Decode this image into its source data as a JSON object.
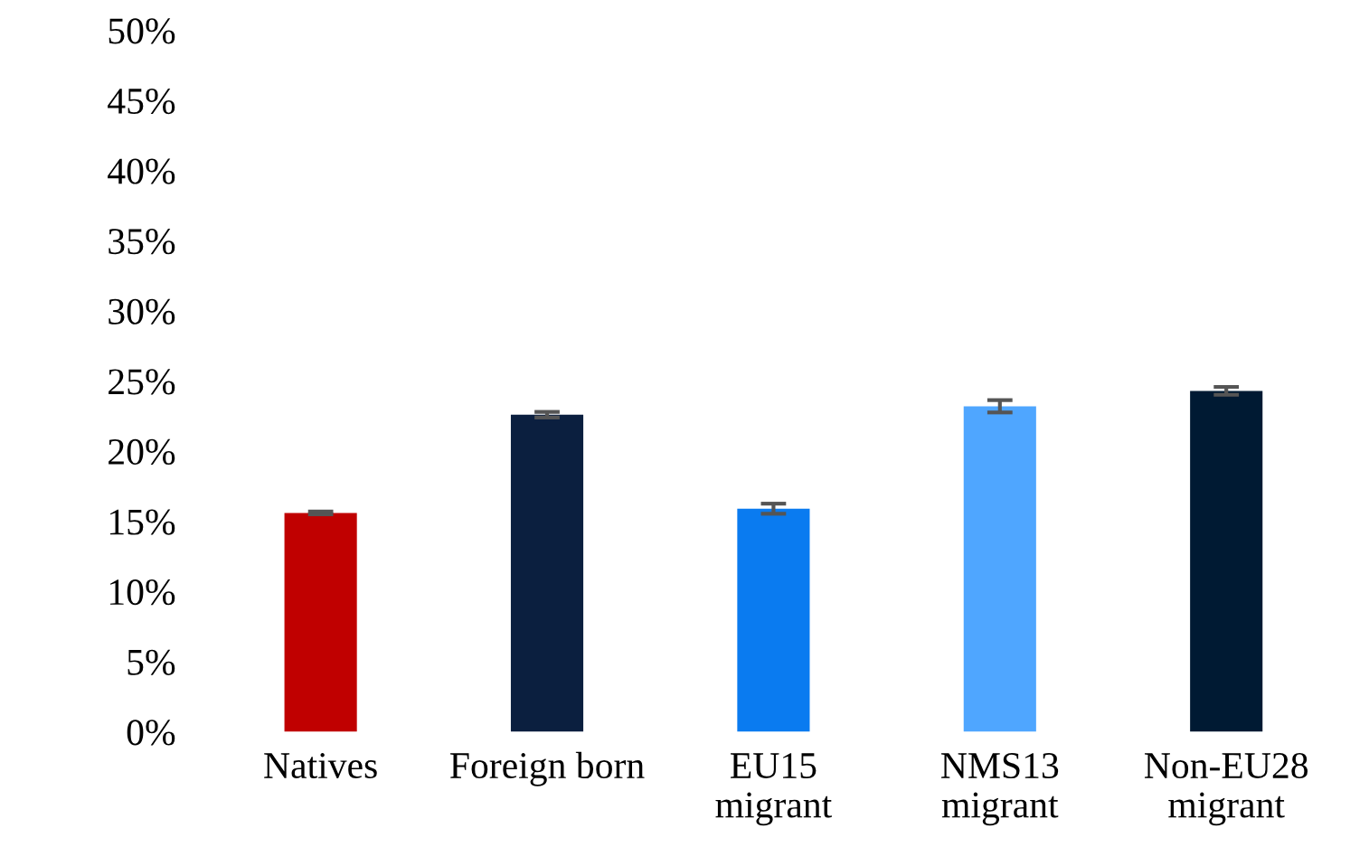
{
  "chart_data": {
    "type": "bar",
    "categories": [
      "Natives",
      "Foreign born",
      "EU15\nmigrant",
      "NMS13\nmigrant",
      "Non-EU28\nmigrant"
    ],
    "values": [
      15.6,
      22.6,
      15.9,
      23.2,
      24.3
    ],
    "errors": [
      0.1,
      0.2,
      0.36,
      0.44,
      0.28
    ],
    "colors": [
      "#c00000",
      "#0b1f3f",
      "#0a7bf0",
      "#4fa6ff",
      "#001a33"
    ],
    "ylim": [
      0,
      50
    ],
    "yticks": [
      {
        "value": 0,
        "label": "0%"
      },
      {
        "value": 5,
        "label": "5%"
      },
      {
        "value": 10,
        "label": "10%"
      },
      {
        "value": 15,
        "label": "15%"
      },
      {
        "value": 20,
        "label": "20%"
      },
      {
        "value": 25,
        "label": "25%"
      },
      {
        "value": 30,
        "label": "30%"
      },
      {
        "value": 35,
        "label": "35%"
      },
      {
        "value": 40,
        "label": "40%"
      },
      {
        "value": 45,
        "label": "45%"
      },
      {
        "value": 50,
        "label": "50%"
      }
    ],
    "grid": false,
    "legend": false
  }
}
